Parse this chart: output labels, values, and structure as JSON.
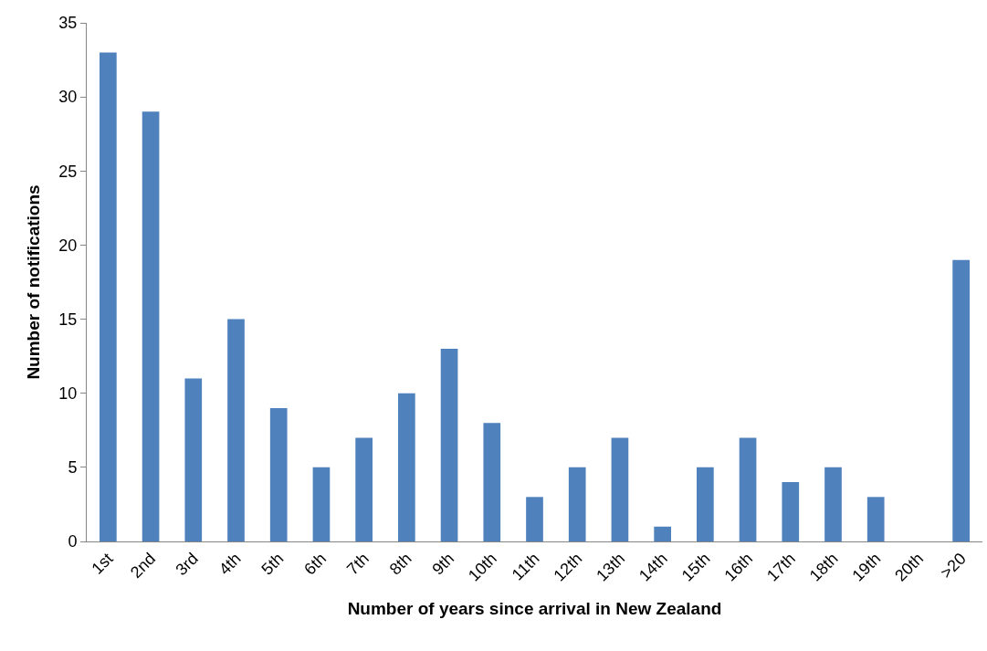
{
  "chart_data": {
    "type": "bar",
    "xlabel": "Number of years since arrival in New Zealand",
    "ylabel": "Number of notifications",
    "categories": [
      "1st",
      "2nd",
      "3rd",
      "4th",
      "5th",
      "6th",
      "7th",
      "8th",
      "9th",
      "10th",
      "11th",
      "12th",
      "13th",
      "14th",
      "15th",
      "16th",
      "17th",
      "18th",
      "19th",
      "20th",
      ">20"
    ],
    "values": [
      33,
      29,
      11,
      15,
      9,
      5,
      7,
      10,
      13,
      8,
      3,
      5,
      7,
      1,
      5,
      7,
      4,
      5,
      3,
      0,
      19
    ],
    "color": "#4f81bd",
    "ylim": [
      0,
      35
    ],
    "yticks": [
      0,
      5,
      10,
      15,
      20,
      25,
      30,
      35
    ]
  }
}
